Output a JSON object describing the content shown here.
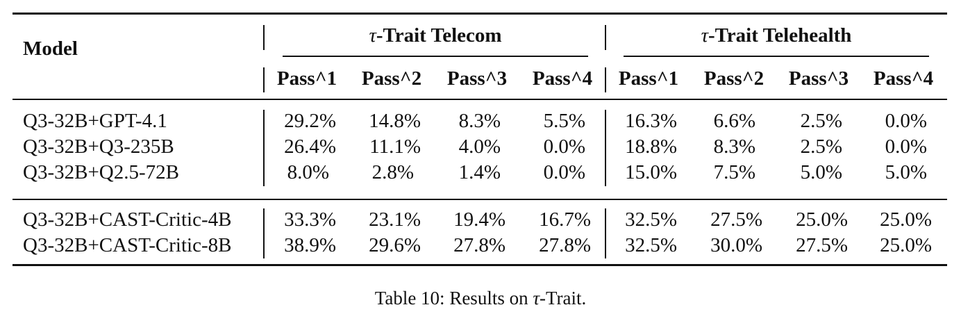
{
  "table": {
    "model_header": "Model",
    "group_telecom": "-Trait Telecom",
    "group_telehealth": "-Trait Telehealth",
    "tau": "τ",
    "pass_headers": [
      "Pass^1",
      "Pass^2",
      "Pass^3",
      "Pass^4",
      "Pass^1",
      "Pass^2",
      "Pass^3",
      "Pass^4"
    ],
    "baseline_rows": [
      {
        "model": "Q3-32B+GPT-4.1",
        "values": [
          "29.2%",
          "14.8%",
          "8.3%",
          "5.5%",
          "16.3%",
          "6.6%",
          "2.5%",
          "0.0%"
        ]
      },
      {
        "model": "Q3-32B+Q3-235B",
        "values": [
          "26.4%",
          "11.1%",
          "4.0%",
          "0.0%",
          "18.8%",
          "8.3%",
          "2.5%",
          "0.0%"
        ]
      },
      {
        "model": "Q3-32B+Q2.5-72B",
        "values": [
          "8.0%",
          "2.8%",
          "1.4%",
          "0.0%",
          "15.0%",
          "7.5%",
          "5.0%",
          "5.0%"
        ]
      }
    ],
    "cast_rows": [
      {
        "model": "Q3-32B+CAST-Critic-4B",
        "values": [
          "33.3%",
          "23.1%",
          "19.4%",
          "16.7%",
          "32.5%",
          "27.5%",
          "25.0%",
          "25.0%"
        ]
      },
      {
        "model": "Q3-32B+CAST-Critic-8B",
        "values": [
          "38.9%",
          "29.6%",
          "27.8%",
          "27.8%",
          "32.5%",
          "30.0%",
          "27.5%",
          "25.0%"
        ]
      }
    ]
  },
  "caption": {
    "prefix": "Table 10: Results on ",
    "tau": "τ",
    "suffix": "-Trait."
  }
}
